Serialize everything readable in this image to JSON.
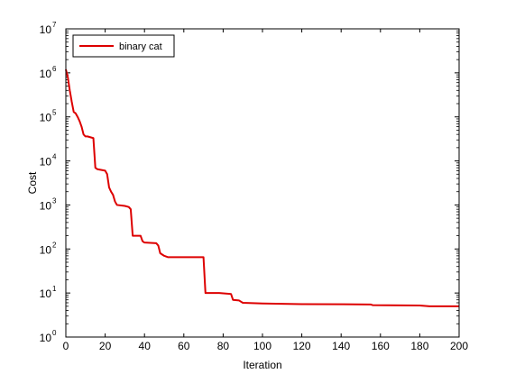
{
  "chart_data": {
    "type": "line",
    "title": "",
    "xlabel": "Iteration",
    "ylabel": "Cost",
    "xlim": [
      0,
      200
    ],
    "ylim": [
      1,
      10000000
    ],
    "y_scale": "log",
    "grid": false,
    "legend_position": "top-left",
    "x_ticks": [
      0,
      20,
      40,
      60,
      80,
      100,
      120,
      140,
      160,
      180,
      200
    ],
    "x_tick_labels": [
      "0",
      "20",
      "40",
      "60",
      "80",
      "100",
      "120",
      "140",
      "160",
      "180",
      "200"
    ],
    "y_ticks": [
      1,
      10,
      100,
      1000,
      10000,
      100000,
      1000000,
      10000000
    ],
    "y_tick_labels": [
      {
        "base": "10",
        "exp": "0"
      },
      {
        "base": "10",
        "exp": "1"
      },
      {
        "base": "10",
        "exp": "2"
      },
      {
        "base": "10",
        "exp": "3"
      },
      {
        "base": "10",
        "exp": "4"
      },
      {
        "base": "10",
        "exp": "5"
      },
      {
        "base": "10",
        "exp": "6"
      },
      {
        "base": "10",
        "exp": "7"
      }
    ],
    "series": [
      {
        "name": "binary cat",
        "color": "#dd0000",
        "x": [
          0,
          1,
          2,
          3,
          4,
          5,
          6,
          7,
          8,
          9,
          10,
          11,
          14,
          15,
          16,
          20,
          21,
          22,
          23,
          24,
          25,
          26,
          30,
          32,
          33,
          34,
          38,
          39,
          40,
          46,
          47,
          48,
          50,
          52,
          60,
          70,
          71,
          72,
          78,
          84,
          85,
          88,
          90,
          100,
          120,
          155,
          156,
          180,
          185,
          200
        ],
        "y": [
          1200000,
          800000,
          400000,
          220000,
          130000,
          120000,
          100000,
          80000,
          60000,
          40000,
          36000,
          36000,
          33000,
          7000,
          6500,
          6000,
          5000,
          2500,
          2000,
          1700,
          1200,
          1000,
          950,
          900,
          800,
          200,
          200,
          150,
          140,
          135,
          120,
          80,
          70,
          65,
          65,
          65,
          10,
          10,
          10,
          9.5,
          7,
          6.8,
          6,
          5.8,
          5.6,
          5.5,
          5.3,
          5.2,
          5.0,
          5.0
        ]
      }
    ]
  }
}
